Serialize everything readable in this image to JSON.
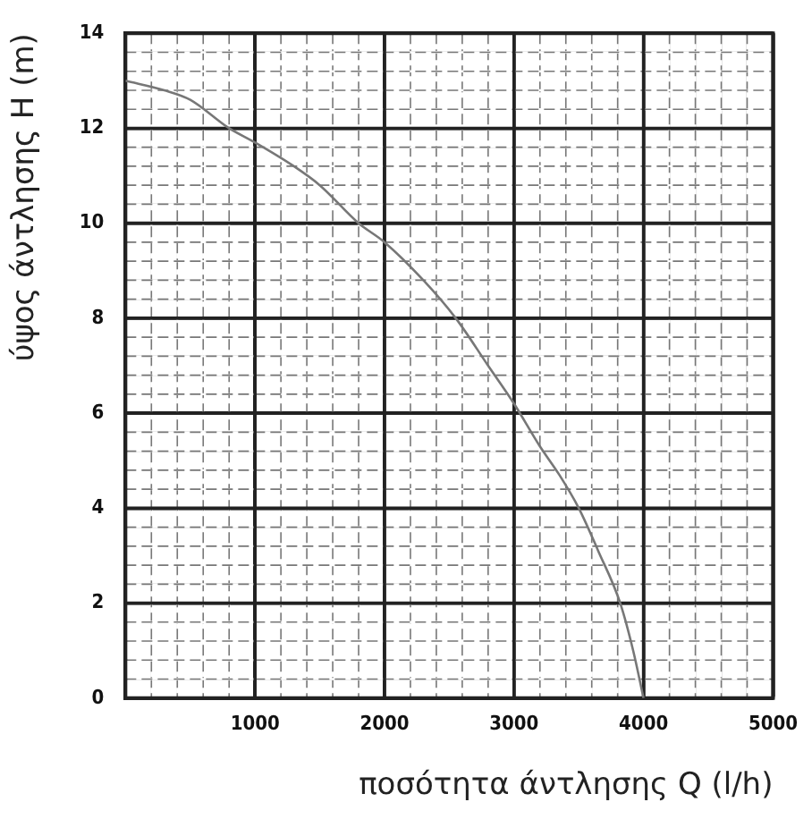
{
  "chart_data": {
    "type": "line",
    "xlabel": "ποσότητα άντλησης Q (l/h)",
    "ylabel": "ύψος άντλησης H (m)",
    "x": [
      0,
      300,
      500,
      800,
      1000,
      1300,
      1500,
      1800,
      2000,
      2300,
      2550,
      2800,
      3000,
      3200,
      3350,
      3500,
      3650,
      3820,
      3920,
      4000
    ],
    "series": [
      {
        "color": "#777777",
        "values": [
          13.0,
          12.8,
          12.6,
          12.0,
          11.7,
          11.2,
          10.8,
          10.0,
          9.6,
          8.8,
          8.0,
          7.0,
          6.2,
          5.3,
          4.7,
          4.0,
          3.1,
          2.0,
          1.0,
          0
        ]
      }
    ],
    "xlim": [
      0,
      5000
    ],
    "ylim": [
      0,
      14
    ],
    "xticks": [
      {
        "value": 0,
        "label": null
      },
      {
        "value": 200,
        "label": null
      },
      {
        "value": 400,
        "label": null
      },
      {
        "value": 600,
        "label": null
      },
      {
        "value": 800,
        "label": null
      },
      1000,
      {
        "value": 1200,
        "label": null
      },
      {
        "value": 1400,
        "label": null
      },
      {
        "value": 1600,
        "label": null
      },
      {
        "value": 1800,
        "label": null
      },
      2000,
      {
        "value": 2200,
        "label": null
      },
      {
        "value": 2400,
        "label": null
      },
      {
        "value": 2600,
        "label": null
      },
      {
        "value": 2800,
        "label": null
      },
      3000,
      {
        "value": 3200,
        "label": null
      },
      {
        "value": 3400,
        "label": null
      },
      {
        "value": 3600,
        "label": null
      },
      {
        "value": 3800,
        "label": null
      },
      4000,
      {
        "value": 4200,
        "label": null
      },
      {
        "value": 4400,
        "label": null
      },
      {
        "value": 4600,
        "label": null
      },
      {
        "value": 4800,
        "label": null
      },
      5000
    ],
    "yticks": [
      0,
      {
        "value": 0.4,
        "label": null
      },
      {
        "value": 0.8,
        "label": null
      },
      {
        "value": 1.2,
        "label": null
      },
      {
        "value": 1.6,
        "label": null
      },
      2,
      {
        "value": 2.4,
        "label": null
      },
      {
        "value": 2.8,
        "label": null
      },
      {
        "value": 3.2,
        "label": null
      },
      {
        "value": 3.6,
        "label": null
      },
      4,
      {
        "value": 4.4,
        "label": null
      },
      {
        "value": 4.8,
        "label": null
      },
      {
        "value": 5.2,
        "label": null
      },
      {
        "value": 5.6,
        "label": null
      },
      6,
      {
        "value": 6.4,
        "label": null
      },
      {
        "value": 6.8,
        "label": null
      },
      {
        "value": 7.2,
        "label": null
      },
      {
        "value": 7.6,
        "label": null
      },
      8,
      {
        "value": 8.4,
        "label": null
      },
      {
        "value": 8.8,
        "label": null
      },
      {
        "value": 9.2,
        "label": null
      },
      {
        "value": 9.6,
        "label": null
      },
      10,
      {
        "value": 10.4,
        "label": null
      },
      {
        "value": 10.8,
        "label": null
      },
      {
        "value": 11.2,
        "label": null
      },
      {
        "value": 11.6,
        "label": null
      },
      12,
      {
        "value": 12.4,
        "label": null
      },
      {
        "value": 12.8,
        "label": null
      },
      {
        "value": 13.2,
        "label": null
      },
      {
        "value": 13.6,
        "label": null
      },
      14
    ],
    "grid": true,
    "legend": false,
    "marker": "none",
    "line_style": "solid"
  }
}
